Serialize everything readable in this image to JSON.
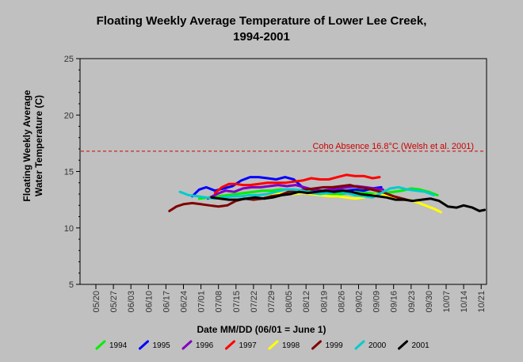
{
  "chart_data": {
    "type": "line",
    "title": "Floating Weekly Average Temperature of Lower Lee Creek,",
    "subtitle": "1994-2001",
    "ylabel_line1": "Floating Weekly Average",
    "ylabel_line2": "Water Temperature (C)",
    "xlabel": "Date MM/DD (06/01 = June 1)",
    "ylim": [
      5,
      25
    ],
    "yticks": [
      "5",
      "10",
      "15",
      "20",
      "25"
    ],
    "x_categories": [
      "05/20",
      "05/27",
      "06/03",
      "06/10",
      "06/17",
      "06/24",
      "07/01",
      "07/08",
      "07/15",
      "07/22",
      "07/29",
      "08/05",
      "08/12",
      "08/19",
      "08/26",
      "09/02",
      "09/09",
      "09/16",
      "09/23",
      "09/30",
      "10/07",
      "10/14",
      "10/21"
    ],
    "reference_line": {
      "value": 16.8,
      "label": "Coho Absence 16.8°C (Welsh et al. 2001)",
      "color": "#cc0000"
    },
    "grid": false,
    "legend_position": "bottom",
    "series": [
      {
        "name": "1994",
        "color": "#00ee00",
        "points": [
          [
            5.9,
            12.6
          ],
          [
            6.5,
            12.7
          ],
          [
            7.0,
            12.8
          ],
          [
            7.5,
            12.9
          ],
          [
            8.0,
            13.0
          ],
          [
            8.5,
            13.1
          ],
          [
            9.0,
            13.2
          ],
          [
            9.5,
            13.3
          ],
          [
            10.0,
            13.3
          ],
          [
            10.5,
            13.4
          ],
          [
            11.0,
            13.4
          ],
          [
            11.5,
            13.3
          ],
          [
            12.0,
            13.2
          ],
          [
            12.5,
            13.2
          ],
          [
            13.0,
            13.1
          ],
          [
            13.5,
            13.0
          ],
          [
            14.0,
            13.0
          ],
          [
            14.5,
            13.1
          ],
          [
            15.0,
            13.2
          ],
          [
            15.5,
            13.1
          ],
          [
            16.0,
            13.0
          ],
          [
            16.5,
            13.1
          ],
          [
            17.0,
            13.2
          ],
          [
            17.5,
            13.3
          ],
          [
            18.0,
            13.5
          ],
          [
            18.5,
            13.4
          ],
          [
            19.0,
            13.2
          ],
          [
            19.5,
            12.9
          ]
        ]
      },
      {
        "name": "1995",
        "color": "#0000ff",
        "points": [
          [
            5.5,
            12.8
          ],
          [
            5.9,
            13.4
          ],
          [
            6.3,
            13.6
          ],
          [
            6.8,
            13.3
          ],
          [
            7.3,
            13.5
          ],
          [
            7.8,
            13.7
          ],
          [
            8.3,
            14.2
          ],
          [
            8.8,
            14.5
          ],
          [
            9.3,
            14.5
          ],
          [
            9.8,
            14.4
          ],
          [
            10.3,
            14.3
          ],
          [
            10.8,
            14.5
          ],
          [
            11.3,
            14.3
          ],
          [
            11.8,
            13.6
          ],
          [
            12.3,
            13.4
          ],
          [
            12.8,
            13.3
          ],
          [
            13.3,
            13.2
          ],
          [
            13.8,
            13.3
          ],
          [
            14.3,
            13.3
          ],
          [
            14.8,
            13.4
          ],
          [
            15.3,
            13.3
          ],
          [
            15.8,
            13.5
          ],
          [
            16.3,
            13.6
          ]
        ]
      },
      {
        "name": "1996",
        "color": "#8000c0",
        "points": [
          [
            6.4,
            12.6
          ],
          [
            6.9,
            13.0
          ],
          [
            7.4,
            13.3
          ],
          [
            7.9,
            13.2
          ],
          [
            8.4,
            13.5
          ],
          [
            8.9,
            13.6
          ],
          [
            9.4,
            13.6
          ],
          [
            9.9,
            13.7
          ],
          [
            10.4,
            13.8
          ],
          [
            10.9,
            13.7
          ],
          [
            11.4,
            13.8
          ],
          [
            11.9,
            13.6
          ],
          [
            12.4,
            13.4
          ],
          [
            12.9,
            13.3
          ],
          [
            13.4,
            13.4
          ],
          [
            13.9,
            13.5
          ],
          [
            14.4,
            13.6
          ],
          [
            14.9,
            13.7
          ],
          [
            15.4,
            13.6
          ],
          [
            15.9,
            13.5
          ],
          [
            16.4,
            13.4
          ]
        ]
      },
      {
        "name": "1997",
        "color": "#ff0000",
        "points": [
          [
            6.8,
            13.1
          ],
          [
            7.2,
            13.6
          ],
          [
            7.6,
            13.9
          ],
          [
            8.0,
            13.9
          ],
          [
            8.4,
            13.8
          ],
          [
            8.8,
            13.8
          ],
          [
            9.3,
            13.9
          ],
          [
            9.8,
            14.0
          ],
          [
            10.3,
            14.0
          ],
          [
            10.8,
            14.0
          ],
          [
            11.3,
            14.1
          ],
          [
            11.8,
            14.2
          ],
          [
            12.3,
            14.4
          ],
          [
            12.8,
            14.3
          ],
          [
            13.3,
            14.3
          ],
          [
            13.8,
            14.5
          ],
          [
            14.3,
            14.7
          ],
          [
            14.8,
            14.6
          ],
          [
            15.3,
            14.6
          ],
          [
            15.8,
            14.4
          ],
          [
            16.2,
            14.5
          ]
        ]
      },
      {
        "name": "1998",
        "color": "#ffff00",
        "points": [
          [
            9.8,
            12.9
          ],
          [
            10.3,
            13.0
          ],
          [
            10.8,
            13.1
          ],
          [
            11.3,
            13.0
          ],
          [
            11.8,
            13.1
          ],
          [
            12.3,
            13.0
          ],
          [
            12.8,
            12.9
          ],
          [
            13.3,
            12.8
          ],
          [
            13.8,
            12.8
          ],
          [
            14.3,
            12.7
          ],
          [
            14.8,
            12.6
          ],
          [
            15.3,
            12.7
          ],
          [
            15.8,
            12.9
          ],
          [
            16.3,
            13.0
          ],
          [
            16.8,
            12.8
          ],
          [
            17.3,
            12.6
          ],
          [
            17.8,
            12.5
          ],
          [
            18.3,
            12.3
          ],
          [
            18.8,
            12.0
          ],
          [
            19.3,
            11.7
          ],
          [
            19.7,
            11.4
          ]
        ]
      },
      {
        "name": "1999",
        "color": "#800000",
        "points": [
          [
            4.2,
            11.5
          ],
          [
            4.6,
            11.9
          ],
          [
            5.0,
            12.1
          ],
          [
            5.5,
            12.2
          ],
          [
            6.0,
            12.1
          ],
          [
            6.5,
            12.0
          ],
          [
            7.0,
            11.9
          ],
          [
            7.5,
            12.0
          ],
          [
            8.0,
            12.4
          ],
          [
            8.5,
            12.6
          ],
          [
            9.0,
            12.5
          ],
          [
            9.5,
            12.6
          ],
          [
            10.0,
            12.8
          ],
          [
            10.5,
            12.9
          ],
          [
            11.0,
            13.2
          ],
          [
            11.5,
            13.3
          ],
          [
            12.0,
            13.4
          ],
          [
            12.5,
            13.5
          ],
          [
            13.0,
            13.6
          ],
          [
            13.5,
            13.6
          ],
          [
            14.0,
            13.7
          ],
          [
            14.5,
            13.8
          ],
          [
            15.0,
            13.6
          ],
          [
            15.5,
            13.5
          ],
          [
            16.0,
            13.3
          ],
          [
            16.5,
            13.1
          ],
          [
            17.0,
            12.8
          ],
          [
            17.5,
            12.6
          ],
          [
            18.0,
            12.4
          ]
        ]
      },
      {
        "name": "2000",
        "color": "#00cccc",
        "points": [
          [
            4.8,
            13.2
          ],
          [
            5.3,
            12.9
          ],
          [
            5.8,
            12.8
          ],
          [
            6.3,
            12.7
          ],
          [
            6.8,
            12.6
          ],
          [
            7.3,
            12.7
          ],
          [
            7.8,
            12.8
          ],
          [
            8.3,
            12.8
          ],
          [
            8.8,
            12.9
          ],
          [
            9.3,
            12.9
          ],
          [
            9.8,
            13.0
          ],
          [
            10.3,
            13.2
          ],
          [
            10.8,
            13.4
          ],
          [
            11.3,
            13.4
          ],
          [
            11.8,
            13.3
          ],
          [
            12.3,
            13.1
          ],
          [
            12.8,
            13.0
          ],
          [
            13.3,
            13.1
          ],
          [
            13.8,
            13.2
          ],
          [
            14.3,
            13.1
          ],
          [
            14.8,
            12.9
          ],
          [
            15.3,
            12.8
          ],
          [
            15.8,
            12.7
          ],
          [
            16.3,
            13.1
          ],
          [
            16.8,
            13.5
          ],
          [
            17.3,
            13.6
          ],
          [
            17.8,
            13.4
          ],
          [
            18.3,
            13.3
          ],
          [
            18.8,
            13.2
          ],
          [
            19.3,
            12.9
          ]
        ]
      },
      {
        "name": "2001",
        "color": "#000000",
        "points": [
          [
            6.6,
            12.7
          ],
          [
            7.1,
            12.6
          ],
          [
            7.6,
            12.5
          ],
          [
            8.1,
            12.5
          ],
          [
            8.6,
            12.6
          ],
          [
            9.1,
            12.7
          ],
          [
            9.6,
            12.6
          ],
          [
            10.1,
            12.7
          ],
          [
            10.6,
            12.9
          ],
          [
            11.1,
            13.0
          ],
          [
            11.6,
            13.2
          ],
          [
            12.1,
            13.1
          ],
          [
            12.6,
            13.2
          ],
          [
            13.1,
            13.3
          ],
          [
            13.6,
            13.2
          ],
          [
            14.1,
            13.3
          ],
          [
            14.6,
            13.2
          ],
          [
            15.1,
            13.0
          ],
          [
            15.6,
            12.9
          ],
          [
            16.1,
            12.8
          ],
          [
            16.6,
            12.7
          ],
          [
            17.1,
            12.5
          ],
          [
            17.6,
            12.5
          ],
          [
            18.1,
            12.4
          ],
          [
            18.6,
            12.5
          ],
          [
            19.1,
            12.6
          ],
          [
            19.6,
            12.4
          ],
          [
            20.1,
            11.9
          ],
          [
            20.6,
            11.8
          ],
          [
            21.0,
            12.0
          ],
          [
            21.5,
            11.8
          ],
          [
            21.9,
            11.5
          ],
          [
            22.2,
            11.6
          ]
        ]
      }
    ]
  }
}
